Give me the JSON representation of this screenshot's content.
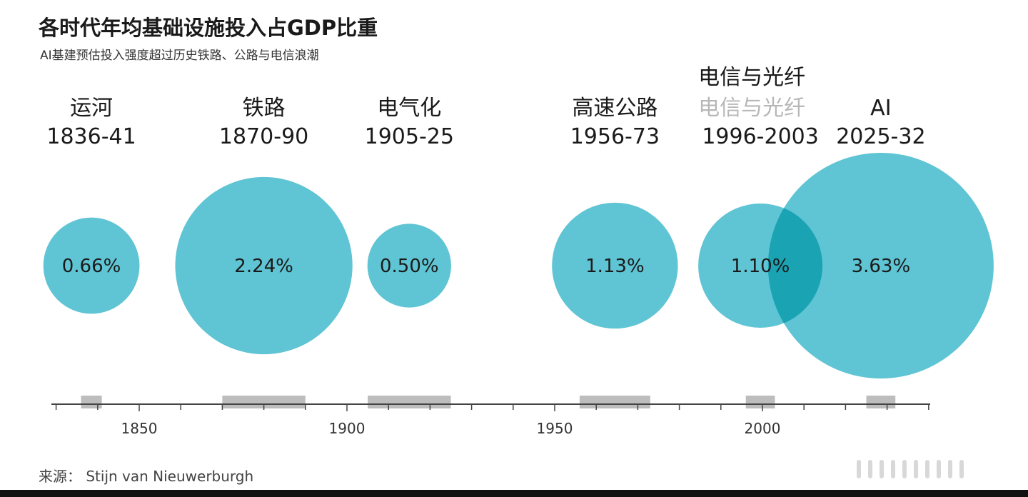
{
  "chart_data": {
    "type": "bubble",
    "title": "各时代年均基础设施投入占GDP比重",
    "subtitle": "AI基建预估投入强度超过历史铁路、公路与电信浪潮",
    "series": [
      {
        "name": "运河",
        "years": "1836-41",
        "start": 1836,
        "end": 1841,
        "value_label": "0.66%",
        "value": 0.66
      },
      {
        "name": "铁路",
        "years": "1870-90",
        "start": 1870,
        "end": 1890,
        "value_label": "2.24%",
        "value": 2.24
      },
      {
        "name": "电气化",
        "years": "1905-25",
        "start": 1905,
        "end": 1925,
        "value_label": "0.50%",
        "value": 0.5
      },
      {
        "name": "高速公路",
        "years": "1956-73",
        "start": 1956,
        "end": 1973,
        "value_label": "1.13%",
        "value": 1.13
      },
      {
        "name": "电信与光纤",
        "years": "1996-2003",
        "start": 1996,
        "end": 2003,
        "value_label": "1.10%",
        "value": 1.1,
        "ghost_name": "电信与光纤"
      },
      {
        "name": "AI",
        "years": "2025-32",
        "start": 2025,
        "end": 2032,
        "value_label": "3.63%",
        "value": 3.63
      }
    ],
    "x_ticks": [
      1850,
      1900,
      1950,
      2000
    ],
    "x_range": [
      1830,
      2040
    ],
    "color": "#5fc4d3",
    "overlap_color": "#1aa3b3",
    "period_bar_color": "#bdbdbd"
  },
  "source": "来源： Stijn van Nieuwerburgh"
}
